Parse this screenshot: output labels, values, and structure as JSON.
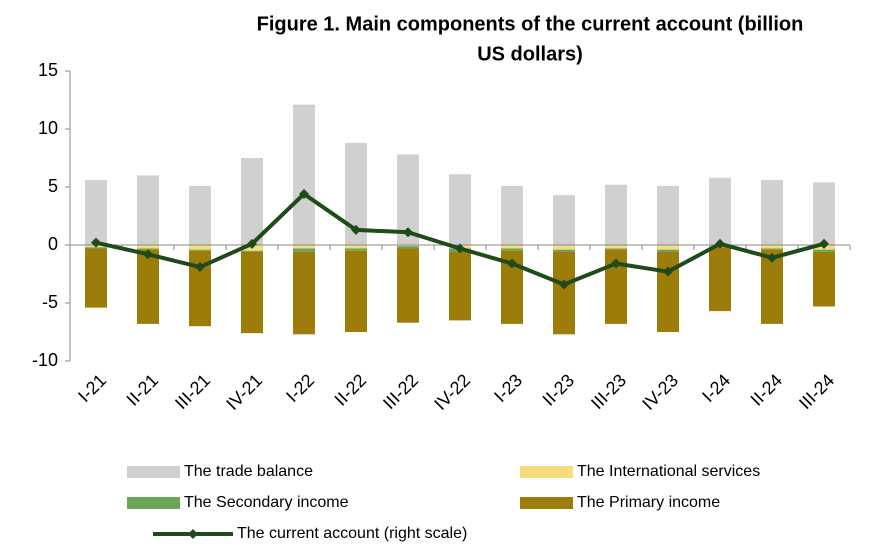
{
  "chart_data": {
    "type": "bar",
    "title": [
      "Figure 1. Main components of the current account (billion",
      "US dollars)"
    ],
    "categories": [
      "I-21",
      "II-21",
      "III-21",
      "IV-21",
      "I-22",
      "II-22",
      "III-22",
      "IV-22",
      "I-23",
      "II-23",
      "III-23",
      "IV-23",
      "I-24",
      "II-24",
      "III-24"
    ],
    "series": [
      {
        "name": "The trade balance",
        "color": "#d0d0d0",
        "type": "bar",
        "values": [
          5.6,
          6.0,
          5.1,
          7.5,
          12.1,
          8.8,
          7.8,
          6.1,
          5.1,
          4.3,
          5.2,
          5.1,
          5.8,
          5.6,
          5.4
        ]
      },
      {
        "name": "The International services",
        "color": "#f6dc7f",
        "type": "bar",
        "values": [
          -0.2,
          -0.3,
          -0.4,
          -0.5,
          -0.3,
          -0.3,
          -0.1,
          -0.3,
          -0.3,
          -0.4,
          -0.3,
          -0.4,
          -0.1,
          -0.3,
          -0.4
        ]
      },
      {
        "name": "The Secondary income",
        "color": "#6aa55a",
        "type": "bar",
        "values": [
          -0.1,
          -0.1,
          -0.1,
          -0.1,
          -0.3,
          -0.2,
          -0.2,
          -0.3,
          -0.2,
          -0.2,
          -0.1,
          -0.2,
          -0.1,
          -0.1,
          -0.2
        ]
      },
      {
        "name": "The Primary income",
        "color": "#9e7c0a",
        "type": "bar",
        "values": [
          -5.1,
          -6.4,
          -6.5,
          -7.0,
          -7.1,
          -7.0,
          -6.4,
          -5.9,
          -6.3,
          -7.1,
          -6.4,
          -6.9,
          -5.5,
          -6.4,
          -4.7
        ]
      },
      {
        "name": "The current account (right scale)",
        "color": "#1f4a1a",
        "type": "line",
        "values": [
          0.2,
          -0.8,
          -1.9,
          0.1,
          4.4,
          1.3,
          1.1,
          -0.3,
          -1.6,
          -3.4,
          -1.6,
          -2.3,
          0.1,
          -1.1,
          0.1
        ]
      }
    ],
    "ylim": [
      -10,
      15
    ],
    "yticks": [
      -10,
      -5,
      0,
      5,
      10,
      15
    ],
    "grid": false
  }
}
